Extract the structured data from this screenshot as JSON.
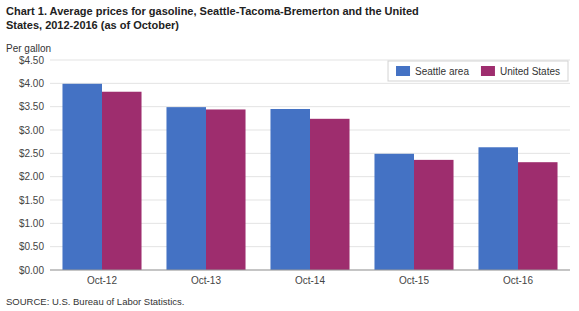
{
  "chart_data": {
    "type": "bar",
    "title": "Chart 1. Average prices for gasoline, Seattle-Tacoma-Bremerton and the United",
    "subtitle": "States, 2012-2016  (as of October)",
    "ylabel": "Per gallon",
    "annotations": [
      "SOURCE: U.S. Bureau of Labor Statistics."
    ],
    "categories": [
      "Oct-12",
      "Oct-13",
      "Oct-14",
      "Oct-15",
      "Oct-16"
    ],
    "series": [
      {
        "name": "Seattle area",
        "color": "#4472C4",
        "values": [
          3.99,
          3.49,
          3.45,
          2.49,
          2.63
        ]
      },
      {
        "name": "United States",
        "color": "#9E2D6E",
        "values": [
          3.82,
          3.44,
          3.24,
          2.36,
          2.31
        ]
      }
    ],
    "ylim": [
      0,
      4.5
    ],
    "yticks": [
      {
        "value": 0.0,
        "label": "$0.00"
      },
      {
        "value": 0.5,
        "label": "$0.50"
      },
      {
        "value": 1.0,
        "label": "$1.00"
      },
      {
        "value": 1.5,
        "label": "$1.50"
      },
      {
        "value": 2.0,
        "label": "$2.00"
      },
      {
        "value": 2.5,
        "label": "$2.50"
      },
      {
        "value": 3.0,
        "label": "$3.00"
      },
      {
        "value": 3.5,
        "label": "$3.50"
      },
      {
        "value": 4.0,
        "label": "$4.00"
      },
      {
        "value": 4.5,
        "label": "$4.50"
      }
    ],
    "grid": true,
    "legend": "upper right"
  }
}
